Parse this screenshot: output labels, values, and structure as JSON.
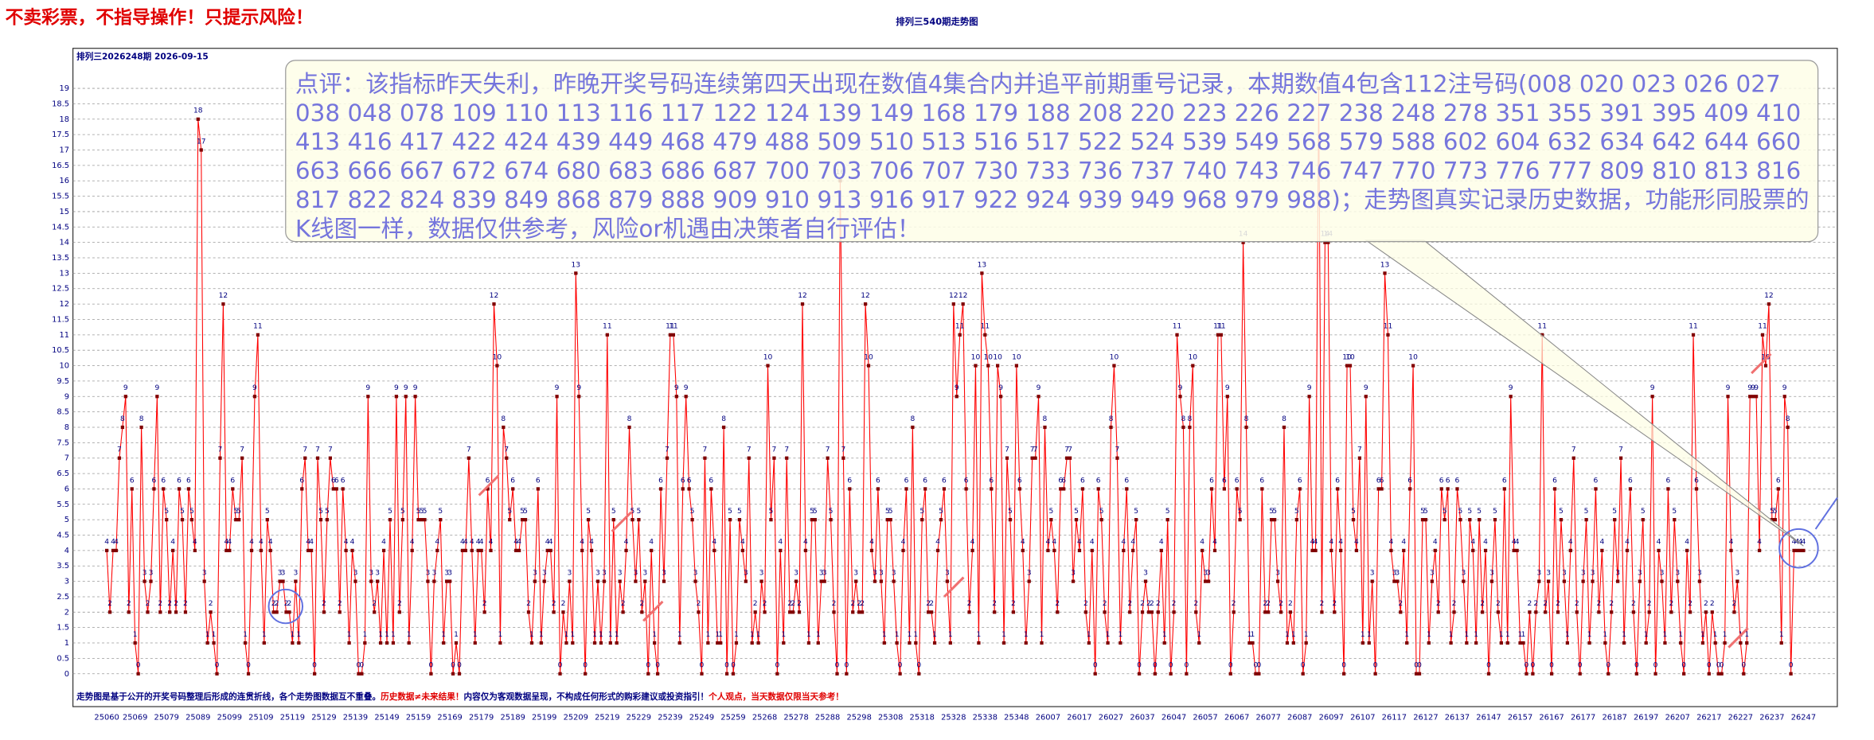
{
  "header": {
    "warning": "不卖彩票，不指导操作！只提示风险！"
  },
  "chart_data": {
    "type": "line",
    "title": "排列三540期走势图",
    "subtitle": "排列三2026248期  2026-09-15",
    "annotation": "点评：该指标昨天失利，昨晚开奖号码连续第四天出现在数值4集合内并追平前期重号记录，本期数值4包含112注号码(008 020 023 026 027 038 048 078 109 110 113 116 117 122 124 139 149 168 179 188 208 220 223 226 227 238 248 278 351 355 391 395 409 410 413 416 417 422 424 439 449 468 479 488 509 510 513 516 517 522 524 539 549 568 579 588 602 604 632 634 642 644 660 663 666 667 672 674 680 683 686 687 700 703 706 707 730 733 736 737 740 743 746 747 770 773 776 777 809 810 813 816 817 822 824 839 849 868 879 888 909 910 913 916 917 922 924 939 949 968 979 988)；走势图真实记录历史数据，功能形同股票的K线图一样，数据仅供参考，风险or机遇由决策者自行评估！",
    "footer": [
      "走势图是基于公开的开奖号码整理后形成的连贯折线，各个走势图数据互不重叠。",
      "历史数据≠未来结果！",
      "内容仅为客观数据呈现，不构成任何形式的购彩建议或投资指引！",
      "个人观点，当天数据仅限当天参考！"
    ],
    "line_color": "#ff0000",
    "marker_color": "#800000",
    "grid": true,
    "ylim": [
      -0.4,
      20.3
    ],
    "yticks": [
      0,
      0.5,
      1,
      1.5,
      2,
      2.5,
      3,
      3.5,
      4,
      4.5,
      5,
      5.5,
      6,
      6.5,
      7,
      7.5,
      8,
      8.5,
      9,
      9.5,
      10,
      10.5,
      11,
      11.5,
      12,
      12.5,
      13,
      13.5,
      14,
      14.5,
      15,
      15.5,
      16,
      16.5,
      17,
      17.5,
      18,
      18.5,
      19
    ],
    "categories": [
      "25060",
      null,
      null,
      null,
      null,
      null,
      null,
      null,
      null,
      "25069",
      null,
      null,
      null,
      null,
      null,
      null,
      null,
      null,
      null,
      "25079",
      null,
      null,
      null,
      null,
      null,
      null,
      null,
      null,
      null,
      "25089",
      null,
      null,
      null,
      null,
      null,
      null,
      null,
      null,
      null,
      "25099",
      null,
      null,
      null,
      null,
      null,
      null,
      null,
      null,
      null,
      "25109",
      null,
      null,
      null,
      null,
      null,
      null,
      null,
      null,
      null,
      "25119",
      null,
      null,
      null,
      null,
      null,
      null,
      null,
      null,
      null,
      "25129",
      null,
      null,
      null,
      null,
      null,
      null,
      null,
      null,
      null,
      "25139",
      null,
      null,
      null,
      null,
      null,
      null,
      null,
      null,
      null,
      "25149",
      null,
      null,
      null,
      null,
      null,
      null,
      null,
      null,
      null,
      "25159",
      null,
      null,
      null,
      null,
      null,
      null,
      null,
      null,
      null,
      "25169",
      null,
      null,
      null,
      null,
      null,
      null,
      null,
      null,
      null,
      "25179",
      null,
      null,
      null,
      null,
      null,
      null,
      null,
      null,
      null,
      "25189",
      null,
      null,
      null,
      null,
      null,
      null,
      null,
      null,
      null,
      "25199",
      null,
      null,
      null,
      null,
      null,
      null,
      null,
      null,
      null,
      "25209",
      null,
      null,
      null,
      null,
      null,
      null,
      null,
      null,
      null,
      "25219",
      null,
      null,
      null,
      null,
      null,
      null,
      null,
      null,
      null,
      "25229",
      null,
      null,
      null,
      null,
      null,
      null,
      null,
      null,
      null,
      "25239",
      null,
      null,
      null,
      null,
      null,
      null,
      null,
      null,
      null,
      "25249",
      null,
      null,
      null,
      null,
      null,
      null,
      null,
      null,
      null,
      "25259",
      null,
      null,
      null,
      null,
      null,
      null,
      null,
      null,
      null,
      "25268",
      null,
      null,
      null,
      null,
      null,
      null,
      null,
      null,
      null,
      "25278",
      null,
      null,
      null,
      null,
      null,
      null,
      null,
      null,
      null,
      "25288",
      null,
      null,
      null,
      null,
      null,
      null,
      null,
      null,
      null,
      "25298",
      null,
      null,
      null,
      null,
      null,
      null,
      null,
      null,
      null,
      "25308",
      null,
      null,
      null,
      null,
      null,
      null,
      null,
      null,
      null,
      "25318",
      null,
      null,
      null,
      null,
      null,
      null,
      null,
      null,
      null,
      "25328",
      null,
      null,
      null,
      null,
      null,
      null,
      null,
      null,
      null,
      "25338",
      null,
      null,
      null,
      null,
      null,
      null,
      null,
      null,
      null,
      "25348",
      null,
      null,
      null,
      null,
      null,
      null,
      null,
      null,
      null,
      "26007",
      null,
      null,
      null,
      null,
      null,
      null,
      null,
      null,
      null,
      "26017",
      null,
      null,
      null,
      null,
      null,
      null,
      null,
      null,
      null,
      "26027",
      null,
      null,
      null,
      null,
      null,
      null,
      null,
      null,
      null,
      "26037",
      null,
      null,
      null,
      null,
      null,
      null,
      null,
      null,
      null,
      "26047",
      null,
      null,
      null,
      null,
      null,
      null,
      null,
      null,
      null,
      "26057",
      null,
      null,
      null,
      null,
      null,
      null,
      null,
      null,
      null,
      "26067",
      null,
      null,
      null,
      null,
      null,
      null,
      null,
      null,
      null,
      "26077",
      null,
      null,
      null,
      null,
      null,
      null,
      null,
      null,
      null,
      "26087",
      null,
      null,
      null,
      null,
      null,
      null,
      null,
      null,
      null,
      "26097",
      null,
      null,
      null,
      null,
      null,
      null,
      null,
      null,
      null,
      "26107",
      null,
      null,
      null,
      null,
      null,
      null,
      null,
      null,
      null,
      "26117",
      null,
      null,
      null,
      null,
      null,
      null,
      null,
      null,
      null,
      "26127",
      null,
      null,
      null,
      null,
      null,
      null,
      null,
      null,
      null,
      "26137",
      null,
      null,
      null,
      null,
      null,
      null,
      null,
      null,
      null,
      "26147",
      null,
      null,
      null,
      null,
      null,
      null,
      null,
      null,
      null,
      "26157",
      null,
      null,
      null,
      null,
      null,
      null,
      null,
      null,
      null,
      "26167",
      null,
      null,
      null,
      null,
      null,
      null,
      null,
      null,
      null,
      "26177",
      null,
      null,
      null,
      null,
      null,
      null,
      null,
      null,
      null,
      "26187",
      null,
      null,
      null,
      null,
      null,
      null,
      null,
      null,
      null,
      "26197",
      null,
      null,
      null,
      null,
      null,
      null,
      null,
      null,
      null,
      "26207",
      null,
      null,
      null,
      null,
      null,
      null,
      null,
      null,
      null,
      "26217",
      null,
      null,
      null,
      null,
      null,
      null,
      null,
      null,
      null,
      "26227",
      null,
      null,
      null,
      null,
      null,
      null,
      null,
      null,
      null,
      "26237",
      null,
      null,
      null,
      null,
      null,
      null,
      null,
      null,
      null,
      "26247"
    ],
    "values": [
      4,
      2,
      4,
      4,
      7,
      8,
      9,
      2,
      6,
      1,
      0,
      8,
      3,
      2,
      3,
      6,
      9,
      2,
      6,
      5,
      2,
      4,
      2,
      6,
      5,
      2,
      6,
      5,
      4,
      18,
      17,
      3,
      1,
      2,
      1,
      0,
      7,
      12,
      4,
      4,
      6,
      5,
      5,
      7,
      1,
      0,
      4,
      9,
      11,
      4,
      1,
      5,
      4,
      2,
      2,
      3,
      3,
      2,
      2,
      1,
      3,
      1,
      6,
      7,
      4,
      4,
      0,
      7,
      5,
      2,
      5,
      7,
      6,
      6,
      2,
      6,
      4,
      1,
      4,
      3,
      0,
      0,
      1,
      9,
      3,
      2,
      3,
      1,
      4,
      1,
      5,
      1,
      9,
      2,
      5,
      9,
      1,
      4,
      9,
      5,
      5,
      5,
      3,
      0,
      3,
      4,
      5,
      1,
      3,
      3,
      0,
      1,
      0,
      4,
      4,
      7,
      4,
      1,
      4,
      4,
      2,
      6,
      4,
      12,
      10,
      1,
      8,
      7,
      5,
      6,
      4,
      4,
      5,
      5,
      2,
      1,
      3,
      6,
      1,
      3,
      4,
      4,
      2,
      9,
      0,
      2,
      1,
      3,
      1,
      13,
      9,
      4,
      0,
      5,
      4,
      1,
      3,
      1,
      3,
      11,
      1,
      5,
      1,
      3,
      2,
      4,
      8,
      5,
      3,
      5,
      2,
      3,
      0,
      4,
      1,
      0,
      6,
      3,
      7,
      11,
      11,
      9,
      1,
      6,
      9,
      6,
      5,
      3,
      2,
      0,
      7,
      1,
      6,
      4,
      1,
      1,
      8,
      0,
      5,
      0,
      1,
      5,
      4,
      3,
      7,
      1,
      2,
      1,
      3,
      2,
      10,
      5,
      7,
      0,
      4,
      1,
      7,
      2,
      2,
      3,
      2,
      12,
      4,
      1,
      5,
      5,
      1,
      3,
      3,
      7,
      5,
      2,
      0,
      16,
      7,
      0,
      6,
      2,
      3,
      2,
      2,
      12,
      10,
      4,
      3,
      6,
      3,
      1,
      5,
      5,
      3,
      1,
      0,
      4,
      6,
      1,
      8,
      1,
      0,
      5,
      6,
      2,
      2,
      1,
      4,
      5,
      6,
      3,
      1,
      12,
      9,
      11,
      12,
      6,
      2,
      4,
      10,
      1,
      13,
      11,
      10,
      6,
      2,
      10,
      9,
      1,
      7,
      5,
      2,
      10,
      6,
      4,
      1,
      3,
      7,
      7,
      9,
      1,
      8,
      4,
      5,
      4,
      2,
      6,
      6,
      7,
      7,
      3,
      5,
      4,
      6,
      2,
      1,
      4,
      0,
      6,
      5,
      2,
      1,
      8,
      10,
      7,
      1,
      4,
      6,
      2,
      4,
      5,
      0,
      2,
      3,
      2,
      2,
      0,
      2,
      4,
      1,
      5,
      0,
      2,
      11,
      9,
      8,
      0,
      8,
      10,
      2,
      1,
      4,
      3,
      3,
      6,
      4,
      11,
      11,
      6,
      9,
      0,
      2,
      6,
      5,
      14,
      8,
      1,
      1,
      0,
      0,
      6,
      2,
      2,
      5,
      5,
      3,
      2,
      8,
      1,
      2,
      1,
      5,
      6,
      0,
      1,
      9,
      4,
      4,
      19,
      2,
      14,
      14,
      4,
      2,
      6,
      4,
      0,
      10,
      10,
      5,
      4,
      7,
      1,
      9,
      1,
      3,
      0,
      6,
      6,
      13,
      11,
      4,
      3,
      3,
      2,
      4,
      1,
      6,
      10,
      0,
      0,
      5,
      5,
      1,
      3,
      4,
      2,
      6,
      5,
      6,
      1,
      2,
      6,
      5,
      3,
      1,
      5,
      4,
      1,
      5,
      2,
      4,
      0,
      3,
      5,
      2,
      1,
      6,
      1,
      9,
      4,
      4,
      1,
      1,
      0,
      2,
      0,
      2,
      3,
      11,
      2,
      3,
      0,
      6,
      2,
      5,
      3,
      1,
      4,
      7,
      2,
      0,
      3,
      5,
      1,
      3,
      6,
      2,
      4,
      1,
      0,
      2,
      5,
      3,
      7,
      1,
      4,
      6,
      2,
      0,
      3,
      5,
      1,
      2,
      9,
      0,
      4,
      3,
      1,
      6,
      2,
      5,
      3,
      1,
      0,
      4,
      2,
      11,
      6,
      3,
      1,
      2,
      0,
      2,
      1,
      0,
      0,
      1,
      9,
      4,
      2,
      3,
      1,
      0,
      1,
      9,
      9,
      9,
      4,
      11,
      10,
      12,
      5,
      5,
      6,
      1,
      9,
      8,
      0,
      4,
      4,
      4,
      4
    ]
  }
}
